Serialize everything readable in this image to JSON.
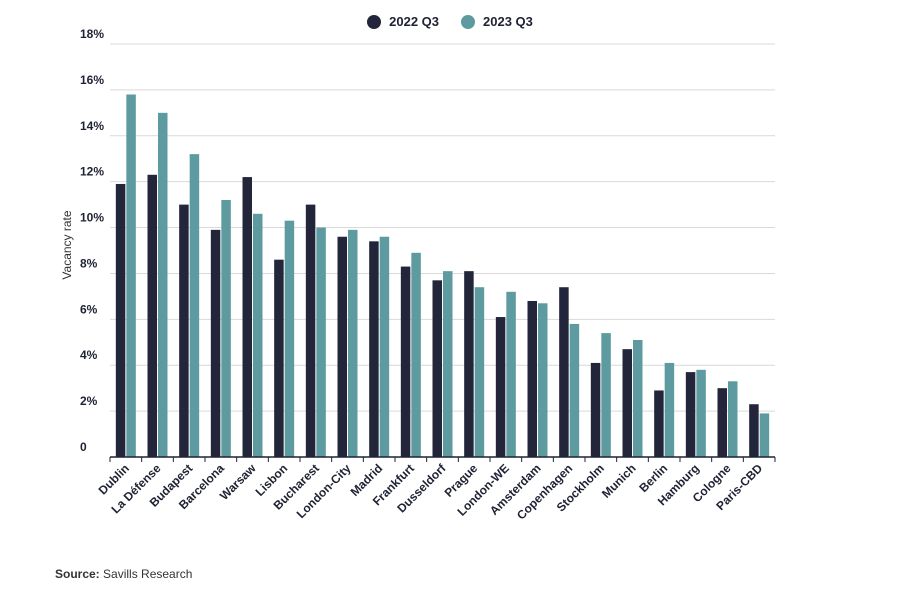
{
  "chart_data": {
    "type": "bar",
    "ylabel": "Vacancy rate",
    "ylim": [
      0,
      18
    ],
    "yticks": [
      "0",
      "2%",
      "4%",
      "6%",
      "8%",
      "10%",
      "12%",
      "14%",
      "16%",
      "18%"
    ],
    "ytick_values": [
      0,
      2,
      4,
      6,
      8,
      10,
      12,
      14,
      16,
      18
    ],
    "grid": true,
    "legend_position": "top-center",
    "categories": [
      "Dublin",
      "La Défense",
      "Budapest",
      "Barcelona",
      "Warsaw",
      "Lisbon",
      "Bucharest",
      "London-City",
      "Madrid",
      "Frankfurt",
      "Dusseldorf",
      "Prague",
      "London-WE",
      "Amsterdam",
      "Copenhagen",
      "Stockholm",
      "Munich",
      "Berlin",
      "Hamburg",
      "Cologne",
      "Paris-CBD"
    ],
    "series": [
      {
        "name": "2022 Q3",
        "color": "#23263a",
        "values": [
          11.9,
          12.3,
          11.0,
          9.9,
          12.2,
          8.6,
          11.0,
          9.6,
          9.4,
          8.3,
          7.7,
          8.1,
          6.1,
          6.8,
          7.4,
          4.1,
          4.7,
          2.9,
          3.7,
          3.0,
          2.3
        ]
      },
      {
        "name": "2023 Q3",
        "color": "#5e9ba0",
        "values": [
          15.8,
          15.0,
          13.2,
          11.2,
          10.6,
          10.3,
          10.0,
          9.9,
          9.6,
          8.9,
          8.1,
          7.4,
          7.2,
          6.7,
          5.8,
          5.4,
          5.1,
          4.1,
          3.8,
          3.3,
          1.9
        ]
      }
    ]
  },
  "source": {
    "label": "Source:",
    "text": "Savills Research"
  }
}
